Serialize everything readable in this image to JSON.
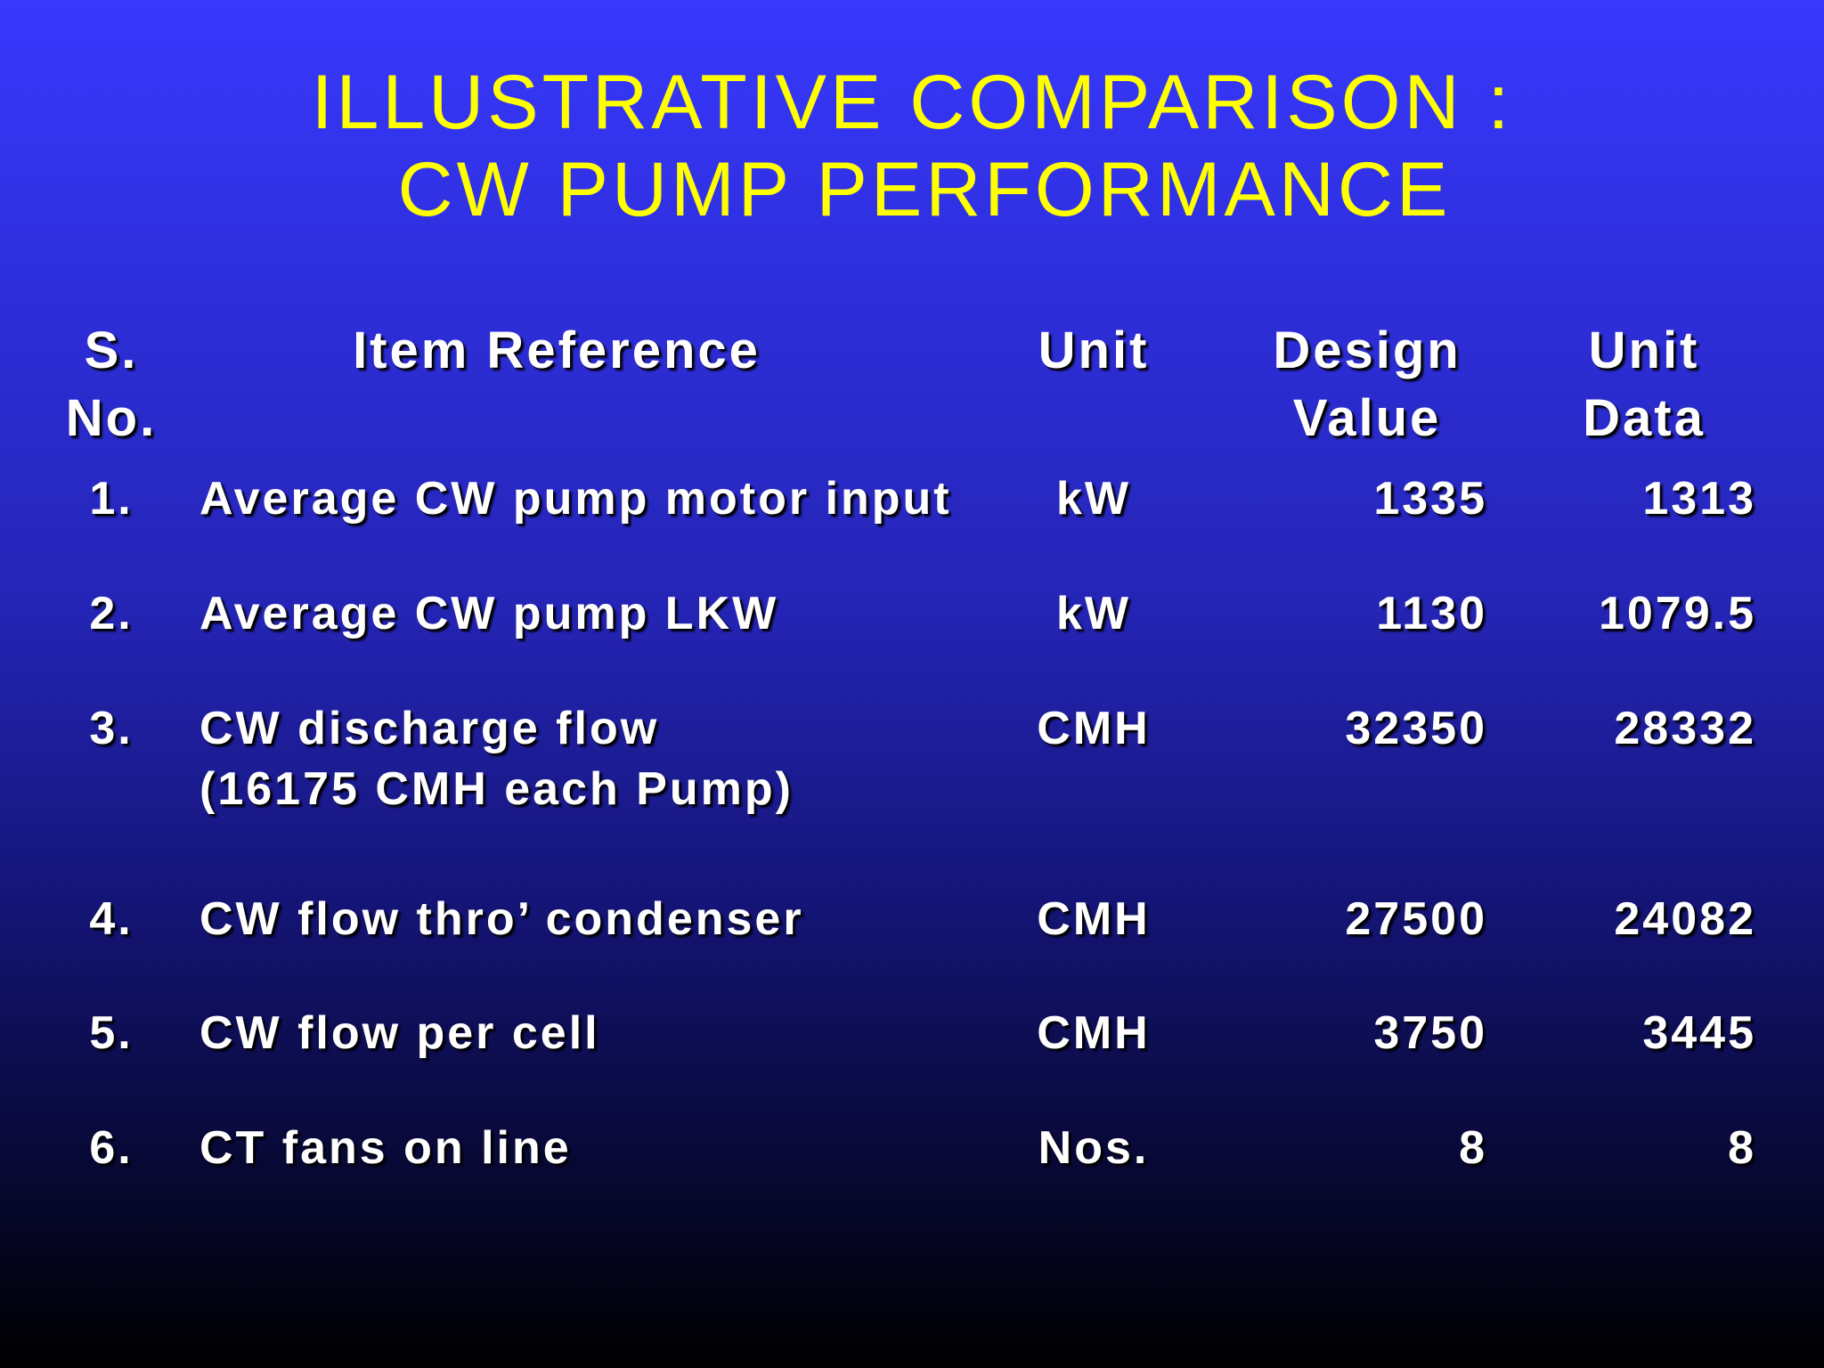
{
  "title": {
    "line1": "ILLUSTRATIVE COMPARISON :",
    "line2": " CW PUMP PERFORMANCE"
  },
  "table": {
    "headers": {
      "sno": [
        "S.",
        "No."
      ],
      "item": [
        "Item Reference"
      ],
      "unit": [
        "Unit"
      ],
      "design": [
        "Design",
        "Value"
      ],
      "data": [
        "Unit",
        "Data"
      ]
    },
    "rows": [
      {
        "sno": "1.",
        "item": [
          "Average CW pump motor input"
        ],
        "unit": "kW",
        "design": "1335",
        "data": "1313"
      },
      {
        "sno": "2.",
        "item": [
          "Average CW pump LKW"
        ],
        "unit": "kW",
        "design": "1130",
        "data": "1079.5"
      },
      {
        "sno": "3.",
        "item": [
          "CW discharge flow",
          "(16175 CMH each Pump)"
        ],
        "unit": "CMH",
        "design": "32350",
        "data": "28332"
      },
      {
        "sno": "4.",
        "item": [
          "CW flow thro’ condenser"
        ],
        "unit": "CMH",
        "design": "27500",
        "data": "24082"
      },
      {
        "sno": "5.",
        "item": [
          "CW flow per cell"
        ],
        "unit": "CMH",
        "design": "3750",
        "data": "3445"
      },
      {
        "sno": "6.",
        "item": [
          "CT fans on line"
        ],
        "unit": "Nos.",
        "design": "8",
        "data": "8"
      }
    ]
  },
  "colors": {
    "title": "#ffff00",
    "text": "#ffffff",
    "background_top": "#3838fe",
    "background_bottom": "#000000"
  }
}
